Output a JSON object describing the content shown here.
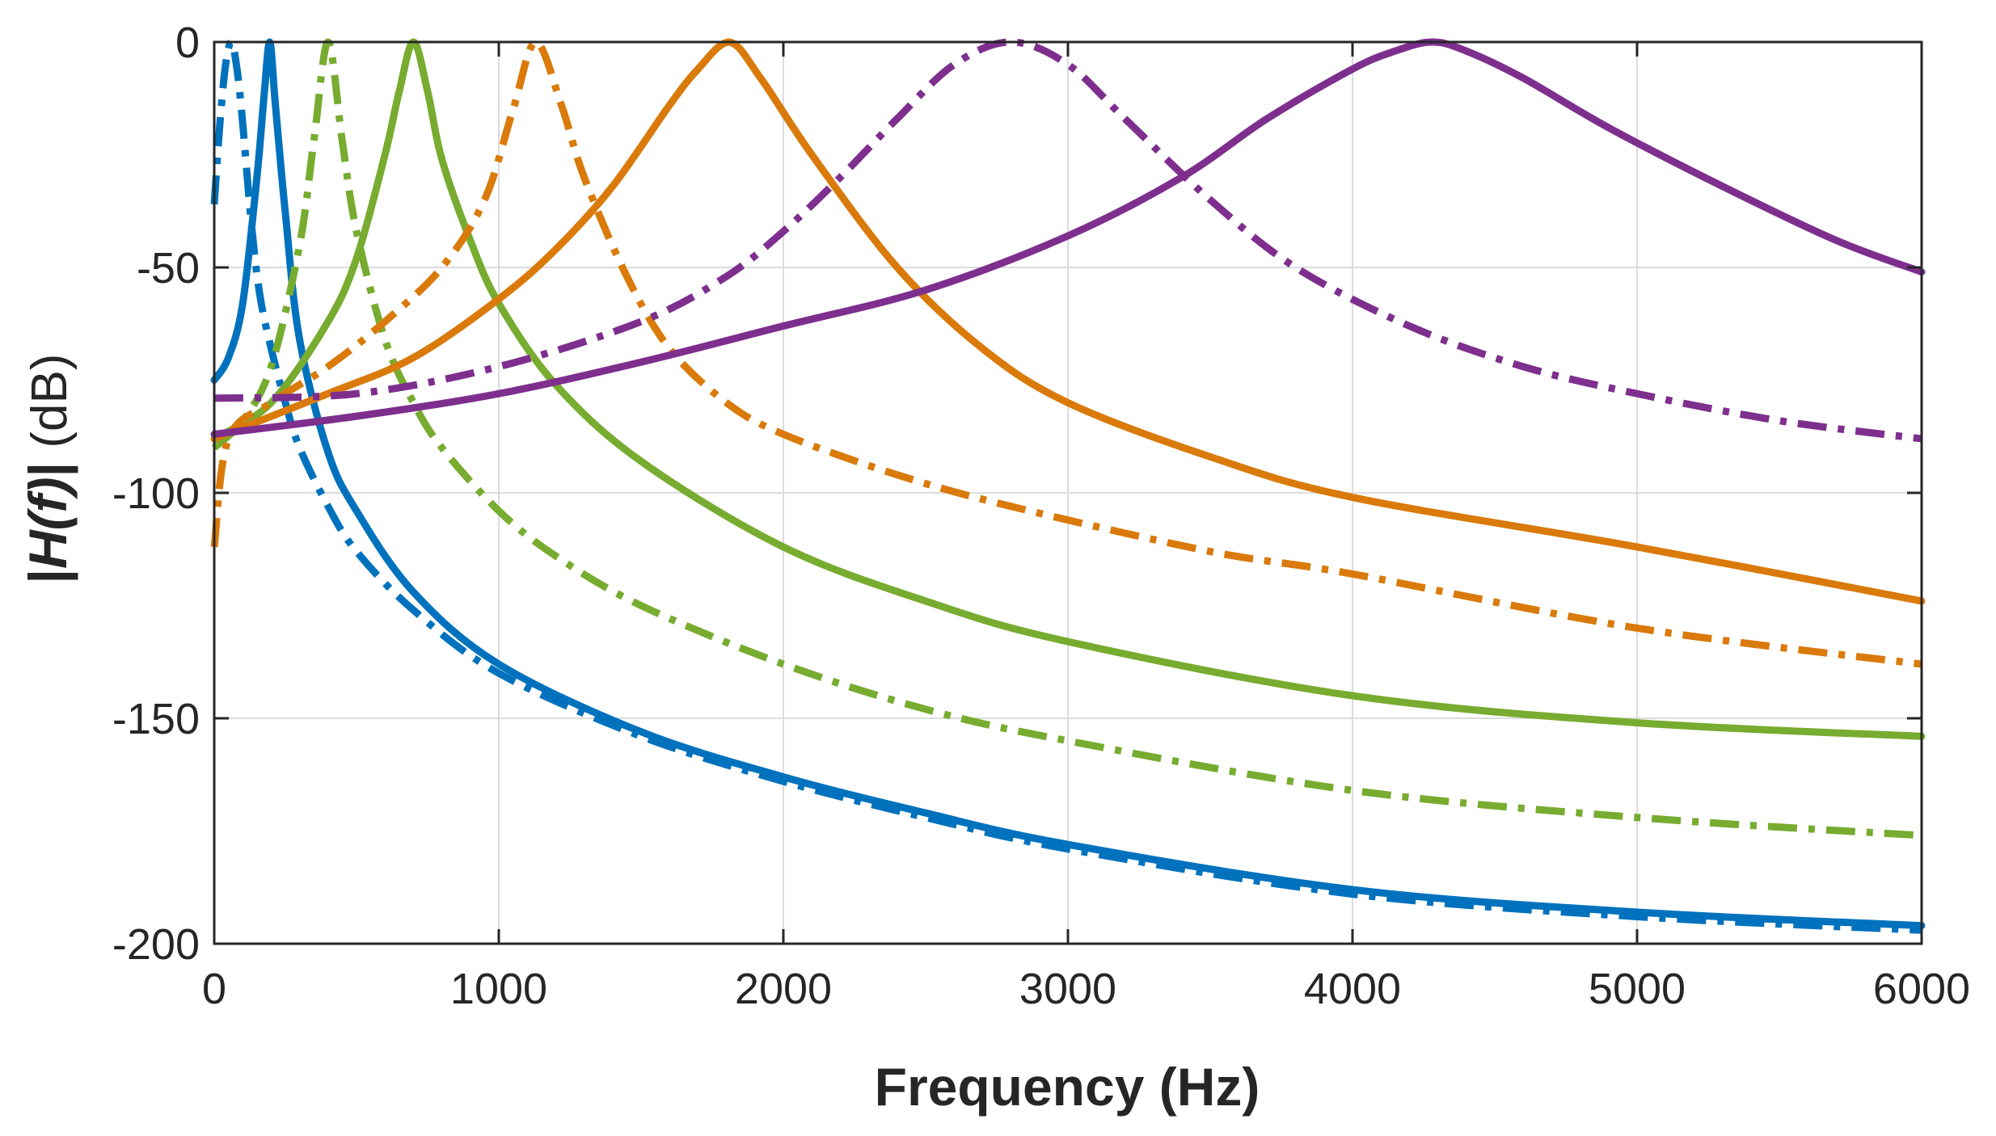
{
  "chart_data": {
    "type": "line",
    "title": "",
    "xlabel": "Frequency (Hz)",
    "ylabel": {
      "open": "|",
      "italic": "H(f)",
      "close": "|",
      "unit": " (dB)"
    },
    "xlim": [
      0,
      6000
    ],
    "ylim": [
      -200,
      0
    ],
    "xticks": [
      0,
      1000,
      2000,
      3000,
      4000,
      5000,
      6000
    ],
    "xtick_labels": [
      "0",
      "1000",
      "2000",
      "3000",
      "4000",
      "5000",
      "6000"
    ],
    "yticks": [
      0,
      -50,
      -100,
      -150,
      -200
    ],
    "ytick_labels": [
      "0",
      "-50",
      "-100",
      "-150",
      "-200"
    ],
    "grid": true,
    "legend": "none",
    "series": [
      {
        "name": "blue-dashed",
        "color": "#0072BD",
        "dash": "dashdot",
        "peak": 60,
        "x": [
          0,
          20,
          40,
          60,
          80,
          100,
          130,
          160,
          200,
          250,
          300,
          400,
          500,
          700,
          1000,
          1500,
          2000,
          2500,
          3000,
          4000,
          5000,
          6000
        ],
        "y": [
          -36,
          -18,
          -5,
          0,
          -6,
          -18,
          -40,
          -56,
          -68,
          -80,
          -90,
          -103,
          -113,
          -126,
          -140,
          -154,
          -164,
          -172,
          -179,
          -189,
          -194,
          -197
        ]
      },
      {
        "name": "blue-solid",
        "color": "#0072BD",
        "dash": "solid",
        "peak": 195,
        "x": [
          0,
          50,
          100,
          150,
          175,
          195,
          215,
          250,
          300,
          400,
          500,
          700,
          1000,
          1500,
          2000,
          2500,
          3000,
          4000,
          5000,
          6000
        ],
        "y": [
          -75,
          -70,
          -58,
          -30,
          -12,
          0,
          -14,
          -38,
          -66,
          -91,
          -104,
          -122,
          -138,
          -153,
          -163,
          -171,
          -178,
          -188,
          -193,
          -196
        ]
      },
      {
        "name": "green-dashed",
        "color": "#77AC30",
        "dash": "dashdot",
        "peak": 400,
        "x": [
          0,
          100,
          200,
          300,
          350,
          400,
          450,
          500,
          600,
          700,
          800,
          1000,
          1200,
          1500,
          2000,
          2500,
          3000,
          4000,
          5000,
          6000
        ],
        "y": [
          -90,
          -84,
          -72,
          -45,
          -22,
          0,
          -22,
          -42,
          -66,
          -80,
          -90,
          -104,
          -114,
          -125,
          -138,
          -148,
          -155,
          -166,
          -172,
          -176
        ]
      },
      {
        "name": "green-solid",
        "color": "#77AC30",
        "dash": "solid",
        "peak": 700,
        "x": [
          0,
          200,
          400,
          500,
          600,
          650,
          700,
          750,
          800,
          900,
          1000,
          1200,
          1500,
          2000,
          2500,
          3000,
          4000,
          5000,
          6000
        ],
        "y": [
          -88,
          -80,
          -62,
          -48,
          -25,
          -11,
          0,
          -11,
          -26,
          -44,
          -58,
          -76,
          -93,
          -112,
          -124,
          -133,
          -145,
          -151,
          -154
        ]
      },
      {
        "name": "orange-dashed",
        "color": "#D97A0B",
        "dash": "dashdot",
        "peak": 1130,
        "x": [
          0,
          50,
          200,
          400,
          600,
          800,
          950,
          1050,
          1130,
          1220,
          1300,
          1450,
          1600,
          1800,
          2000,
          2400,
          2800,
          3500,
          4000,
          5000,
          6000
        ],
        "y": [
          -112,
          -88,
          -80,
          -72,
          -62,
          -50,
          -35,
          -15,
          0,
          -14,
          -30,
          -52,
          -68,
          -80,
          -87,
          -96,
          -103,
          -113,
          -118,
          -130,
          -138
        ]
      },
      {
        "name": "orange-solid",
        "color": "#D97A0B",
        "dash": "solid",
        "peak": 1810,
        "x": [
          0,
          400,
          700,
          1000,
          1200,
          1400,
          1600,
          1700,
          1810,
          1920,
          2100,
          2400,
          2700,
          3000,
          3500,
          4000,
          5000,
          6000
        ],
        "y": [
          -88,
          -78,
          -70,
          -57,
          -46,
          -32,
          -14,
          -6,
          0,
          -8,
          -25,
          -50,
          -68,
          -80,
          -92,
          -101,
          -112,
          -124
        ]
      },
      {
        "name": "purple-dashed",
        "color": "#7E2F8E",
        "dash": "dashdot",
        "peak": 2800,
        "x": [
          0,
          500,
          1000,
          1500,
          1800,
          2000,
          2200,
          2400,
          2600,
          2800,
          3000,
          3200,
          3500,
          3800,
          4200,
          4600,
          5000,
          5500,
          6000
        ],
        "y": [
          -79,
          -78,
          -72,
          -62,
          -52,
          -42,
          -30,
          -17,
          -5,
          0,
          -5,
          -17,
          -35,
          -50,
          -63,
          -72,
          -78,
          -84,
          -88
        ]
      },
      {
        "name": "purple-solid",
        "color": "#7E2F8E",
        "dash": "solid",
        "peak": 4280,
        "x": [
          0,
          500,
          1000,
          1500,
          2000,
          2500,
          3000,
          3400,
          3700,
          4000,
          4150,
          4280,
          4400,
          4600,
          4900,
          5300,
          5700,
          6000
        ],
        "y": [
          -87,
          -83,
          -78,
          -71,
          -63,
          -55,
          -43,
          -30,
          -17,
          -6,
          -2,
          0,
          -2,
          -8,
          -19,
          -32,
          -44,
          -51
        ]
      }
    ]
  }
}
